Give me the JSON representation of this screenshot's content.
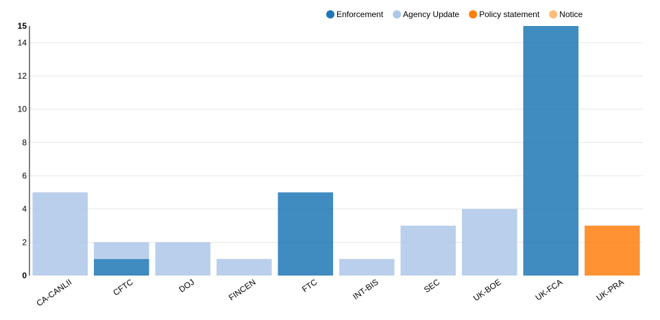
{
  "chart_data": {
    "type": "bar",
    "stacked": true,
    "categories": [
      "CA-CANLII",
      "CFTC",
      "DOJ",
      "FINCEN",
      "FTC",
      "INT-BIS",
      "SEC",
      "UK-BOE",
      "UK-FCA",
      "UK-PRA"
    ],
    "series": [
      {
        "name": "Enforcement",
        "color": "#1f77b4",
        "values": [
          0,
          1,
          0,
          0,
          5,
          0,
          0,
          0,
          15,
          0
        ]
      },
      {
        "name": "Agency Update",
        "color": "#aec7e8",
        "values": [
          5,
          1,
          2,
          1,
          0,
          1,
          3,
          4,
          0,
          0
        ]
      },
      {
        "name": "Policy statement",
        "color": "#ff7f0e",
        "values": [
          0,
          0,
          0,
          0,
          0,
          0,
          0,
          0,
          0,
          3
        ]
      },
      {
        "name": "Notice",
        "color": "#ffbb78",
        "values": [
          0,
          0,
          0,
          0,
          0,
          0,
          0,
          0,
          0,
          0
        ]
      }
    ],
    "ylim": [
      0,
      15
    ],
    "yticks": [
      0,
      2,
      4,
      6,
      8,
      10,
      12,
      14
    ],
    "ymax_label": 15,
    "title": "",
    "xlabel": "",
    "ylabel": "",
    "grid": true,
    "legend_position": "top-right"
  }
}
